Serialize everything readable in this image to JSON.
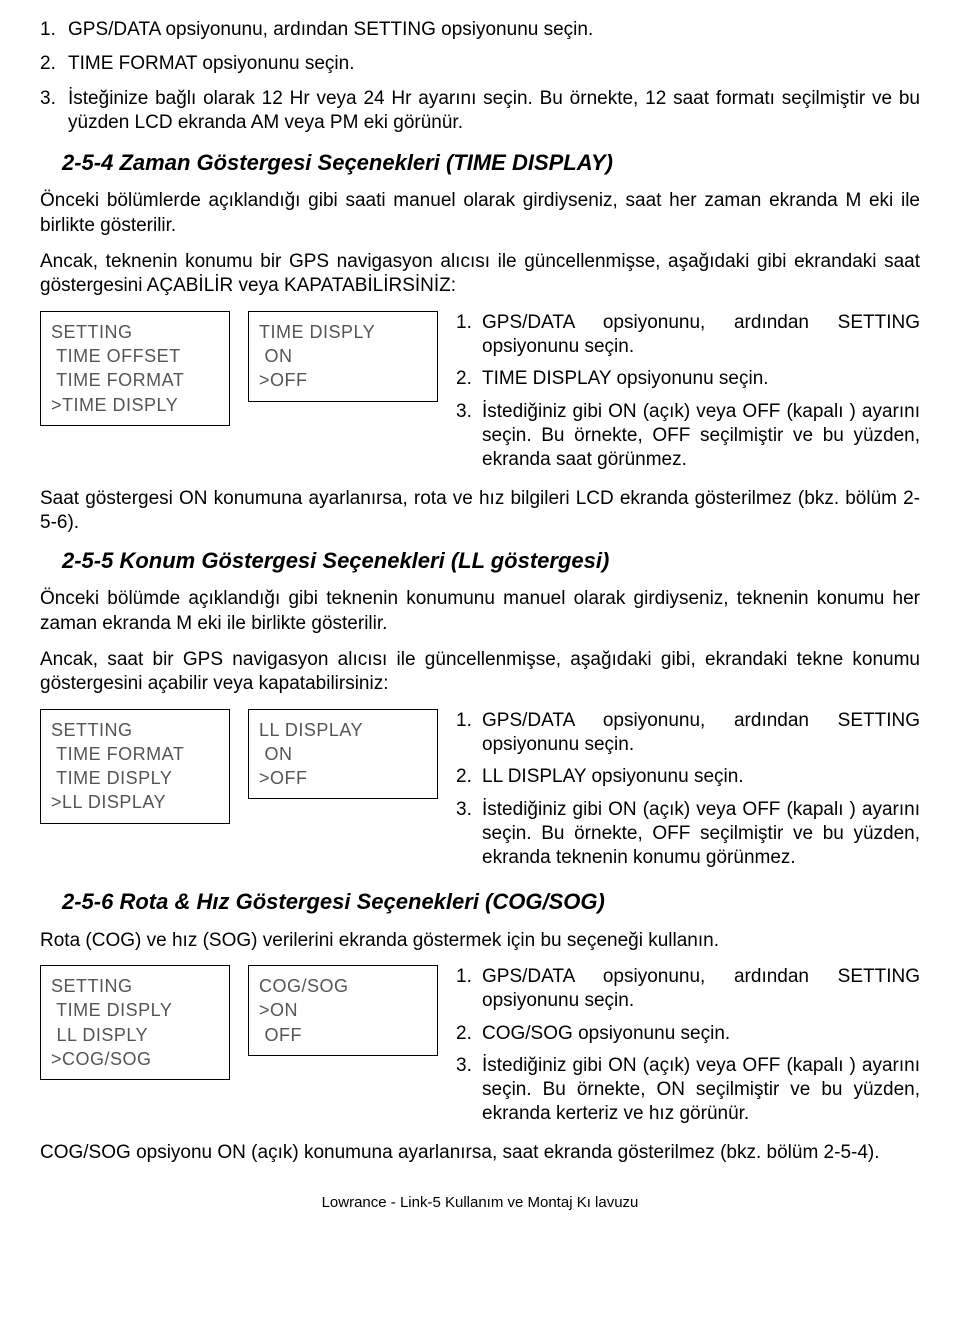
{
  "topList": [
    {
      "n": "1.",
      "t": "GPS/DATA opsiyonunu, ardından SETTING opsiyonunu seçin."
    },
    {
      "n": "2.",
      "t": "TIME FORMAT opsiyonunu seçin."
    },
    {
      "n": "3.",
      "t": "İsteğinize bağlı olarak 12 Hr veya 24 Hr ayarını seçin. Bu örnekte, 12 saat formatı seçilmiştir ve bu yüzden LCD ekranda AM veya PM eki görünür."
    }
  ],
  "sec254": {
    "title": "2-5-4 Zaman Göstergesi Seçenekleri (TIME DISPLAY)",
    "p1": "Önceki bölümlerde açıklandığı gibi saati manuel olarak girdiyseniz, saat her zaman ekranda M eki ile birlikte gösterilir.",
    "p2": "Ancak, teknenin konumu bir GPS navigasyon alıcısı ile güncellenmişse, aşağıdaki gibi ekrandaki saat göstergesini AÇABİLİR veya KAPATABİLİRSİNİZ:",
    "lcd1": [
      "SETTING",
      " TIME OFFSET",
      " TIME FORMAT",
      ">TIME DISPLY"
    ],
    "lcd2": [
      "TIME DISPLY",
      " ON",
      ">OFF"
    ],
    "steps": [
      {
        "n": "1.",
        "t": "GPS/DATA opsiyonunu, ardından SETTING opsiyonunu seçin."
      },
      {
        "n": "2.",
        "t": "TIME DISPLAY opsiyonunu seçin."
      },
      {
        "n": "3.",
        "t": "İstediğiniz gibi ON (açık) veya OFF (kapalı ) ayarını seçin. Bu örnekte, OFF seçilmiştir ve bu yüzden, ekranda saat görünmez."
      }
    ],
    "after": "Saat göstergesi ON konumuna ayarlanırsa, rota ve hız bilgileri LCD ekranda gösterilmez (bkz. bölüm 2-5-6)."
  },
  "sec255": {
    "title": "2-5-5 Konum Göstergesi Seçenekleri (LL göstergesi)",
    "p1": "Önceki bölümde açıklandığı gibi teknenin konumunu manuel olarak girdiyseniz, teknenin konumu her zaman ekranda M eki ile birlikte gösterilir.",
    "p2": "Ancak, saat bir GPS navigasyon alıcısı ile güncellenmişse, aşağıdaki gibi, ekrandaki tekne konumu göstergesini açabilir veya kapatabilirsiniz:",
    "lcd1": [
      "SETTING",
      " TIME FORMAT",
      " TIME DISPLY",
      ">LL DISPLAY"
    ],
    "lcd2": [
      "LL DISPLAY",
      " ON",
      ">OFF"
    ],
    "steps": [
      {
        "n": "1.",
        "t": "GPS/DATA opsiyonunu, ardından SETTING opsiyonunu seçin."
      },
      {
        "n": "2.",
        "t": "LL DISPLAY opsiyonunu seçin."
      },
      {
        "n": "3.",
        "t": "İstediğiniz gibi ON (açık) veya OFF (kapalı ) ayarını seçin. Bu örnekte, OFF seçilmiştir ve bu yüzden, ekranda teknenin konumu görünmez."
      }
    ]
  },
  "sec256": {
    "title": "2-5-6 Rota & Hız Göstergesi Seçenekleri (COG/SOG)",
    "p1": "Rota (COG) ve hız (SOG) verilerini ekranda göstermek için bu seçeneği kullanın.",
    "lcd1": [
      "SETTING",
      " TIME DISPLY",
      " LL DISPLY",
      ">COG/SOG"
    ],
    "lcd2": [
      "COG/SOG",
      ">ON",
      " OFF"
    ],
    "steps": [
      {
        "n": "1.",
        "t": "GPS/DATA opsiyonunu, ardından SETTING opsiyonunu seçin."
      },
      {
        "n": "2.",
        "t": "COG/SOG opsiyonunu seçin."
      },
      {
        "n": "3.",
        "t": "İstediğiniz gibi ON (açık) veya OFF (kapalı ) ayarını seçin. Bu örnekte, ON  seçilmiştir ve bu yüzden, ekranda kerteriz ve hız görünür."
      }
    ],
    "after": "COG/SOG opsiyonu ON (açık) konumuna ayarlanırsa, saat ekranda gösterilmez (bkz. bölüm 2-5-4)."
  },
  "footer": "Lowrance - Link-5 Kullanım ve Montaj Kı lavuzu"
}
